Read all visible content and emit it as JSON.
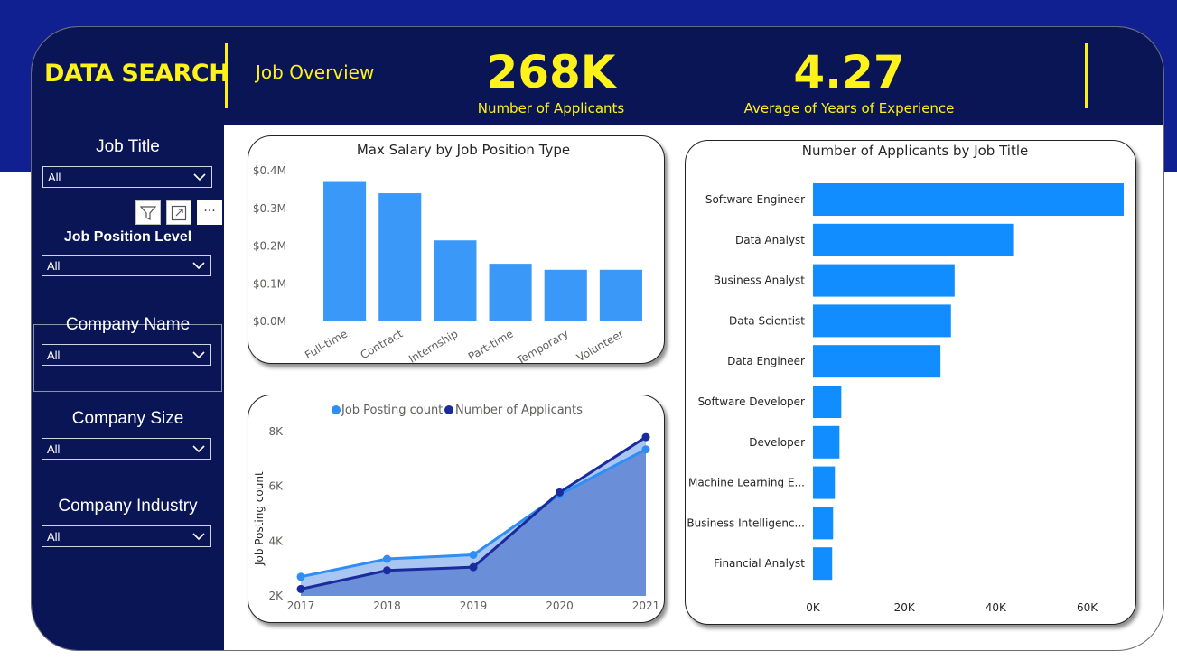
{
  "header": {
    "brand": "DATA SEARCH",
    "subtitle": "Job Overview",
    "kpis": [
      {
        "value": "268K",
        "label": "Number of Applicants"
      },
      {
        "value": "4.27",
        "label": "Average of Years of Experience"
      }
    ]
  },
  "filters": [
    {
      "label": "Job Title",
      "value": "All"
    },
    {
      "label": "Job Position Level",
      "value": "All"
    },
    {
      "label": "Company Name",
      "value": "All"
    },
    {
      "label": "Company Size",
      "value": "All"
    },
    {
      "label": "Company Industry",
      "value": "All"
    }
  ],
  "visual_toolbar": {
    "icons": [
      "filter-icon",
      "focus-mode-icon",
      "more-options-icon"
    ],
    "more_label": "···"
  },
  "colors": {
    "header_bg": "#0a1556",
    "accent_yellow": "#fff21a",
    "bar_light": "#3a99f8",
    "bar_bright": "#118dff",
    "line_dark": "#1a2b9e",
    "line_light": "#2d8ef5"
  },
  "chart_data": [
    {
      "type": "bar",
      "title": "Max Salary by Job Position Type",
      "categories": [
        "Full-time",
        "Contract",
        "Internship",
        "Part-time",
        "Temporary",
        "Volunteer"
      ],
      "values": [
        0.37,
        0.34,
        0.215,
        0.153,
        0.137,
        0.137
      ],
      "y_ticks": [
        "$0.0M",
        "$0.1M",
        "$0.2M",
        "$0.3M",
        "$0.4M"
      ],
      "ylim": [
        0,
        0.4
      ],
      "value_unit": "$M",
      "grid": false
    },
    {
      "type": "area",
      "x": [
        "2017",
        "2018",
        "2019",
        "2020",
        "2021"
      ],
      "ylabel": "Job Posting count",
      "y_ticks": [
        "2K",
        "4K",
        "6K",
        "8K"
      ],
      "ylim": [
        2000,
        8000
      ],
      "legend": "top",
      "series": [
        {
          "name": "Job Posting count",
          "values": [
            2700,
            3350,
            3500,
            5700,
            7350
          ]
        },
        {
          "name": "Number of Applicants",
          "values": [
            2250,
            2930,
            3050,
            5780,
            7800
          ]
        }
      ]
    },
    {
      "type": "bar",
      "orientation": "horizontal",
      "title": "Number of Applicants by Job Title",
      "categories": [
        "Software Engineer",
        "Data Analyst",
        "Business Analyst",
        "Data Scientist",
        "Data Engineer",
        "Software Developer",
        "Developer",
        "Machine Learning E...",
        "Business Intelligenc...",
        "Financial Analyst"
      ],
      "values": [
        68000,
        43800,
        31000,
        30200,
        27900,
        6200,
        5800,
        4800,
        4400,
        4200
      ],
      "x_ticks": [
        "0K",
        "20K",
        "40K",
        "60K"
      ],
      "xlim": [
        0,
        68000
      ],
      "grid": false
    }
  ]
}
